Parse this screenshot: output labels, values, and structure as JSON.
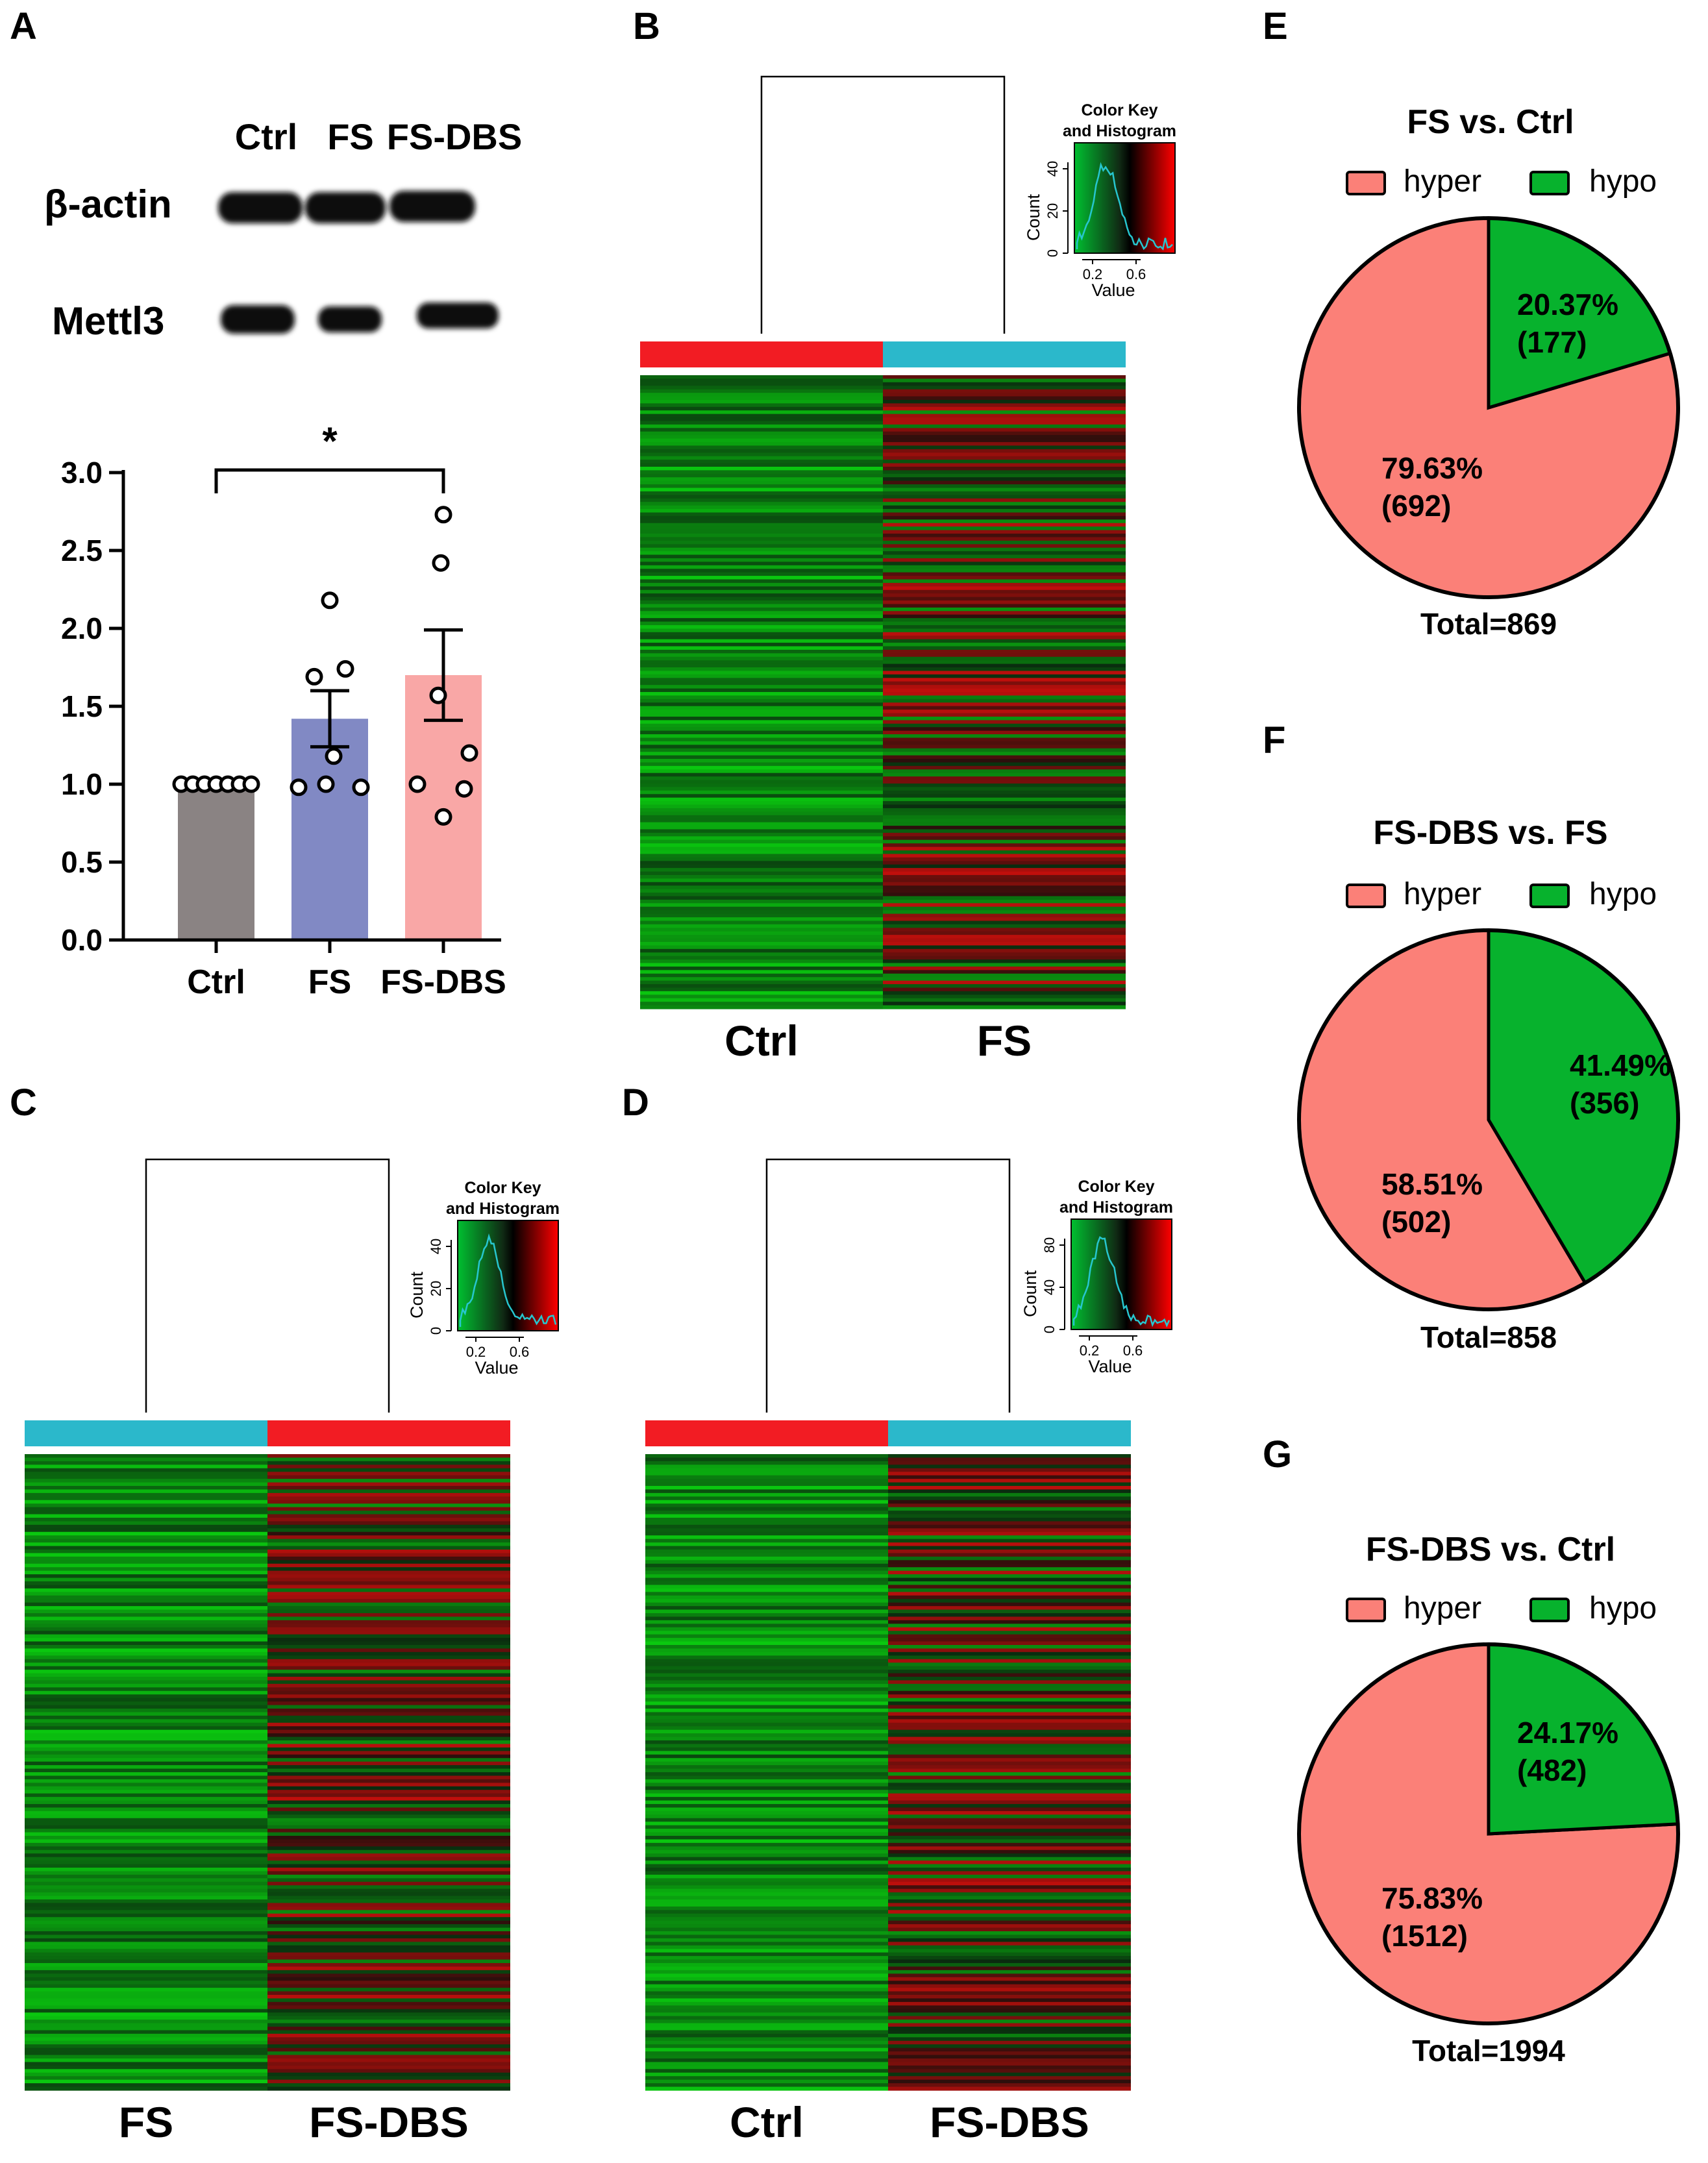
{
  "colors": {
    "ctrl_bar": "#8a8383",
    "fs_bar": "#8189c4",
    "fsdbs_bar": "#f9a7a6",
    "hyper": "#fb8078",
    "hypo": "#07b22d",
    "group_red": "#f21c23",
    "group_cyan": "#2bb8cb"
  },
  "panel_letters": [
    "A",
    "B",
    "C",
    "D",
    "E",
    "F",
    "G"
  ],
  "western_blot": {
    "lane_labels": [
      "Ctrl",
      "FS",
      "FS-DBS"
    ],
    "rows": [
      "β-actin",
      "Mettl3"
    ]
  },
  "chart_data": [
    {
      "panel": "A",
      "type": "bar",
      "categories": [
        "Ctrl",
        "FS",
        "FS-DBS"
      ],
      "values": [
        1.0,
        1.42,
        1.7
      ],
      "sem": [
        0.0,
        0.18,
        0.29
      ],
      "points": [
        [
          1.0,
          1.0,
          1.0,
          1.0,
          1.0,
          1.0,
          1.0
        ],
        [
          0.98,
          1.0,
          1.18,
          1.69,
          1.74,
          2.18,
          0.98
        ],
        [
          0.79,
          1.0,
          1.2,
          1.57,
          2.42,
          2.73,
          0.97
        ]
      ],
      "ylim": [
        0,
        3.0
      ],
      "yticks": [
        "0.0",
        "0.5",
        "1.0",
        "1.5",
        "2.0",
        "2.5",
        "3.0"
      ],
      "significance": {
        "between": [
          "Ctrl",
          "FS-DBS"
        ],
        "label": "*"
      }
    },
    {
      "panel": "B",
      "type": "heatmap",
      "columns": [
        "Ctrl",
        "FS"
      ],
      "color_key": {
        "title_line1": "Color Key",
        "title_line2": "and Histogram",
        "ylabel": "Count",
        "xlabel": "Value",
        "xticks": [
          "0.2",
          "0.6"
        ],
        "yticks": [
          "0",
          "20",
          "40"
        ]
      }
    },
    {
      "panel": "C",
      "type": "heatmap",
      "columns": [
        "FS",
        "FS-DBS"
      ],
      "color_key": {
        "title_line1": "Color Key",
        "title_line2": "and Histogram",
        "ylabel": "Count",
        "xlabel": "Value",
        "xticks": [
          "0.2",
          "0.6"
        ],
        "yticks": [
          "0",
          "20",
          "40"
        ]
      }
    },
    {
      "panel": "D",
      "type": "heatmap",
      "columns": [
        "Ctrl",
        "FS-DBS"
      ],
      "color_key": {
        "title_line1": "Color Key",
        "title_line2": "and Histogram",
        "ylabel": "Count",
        "xlabel": "Value",
        "xticks": [
          "0.2",
          "0.6"
        ],
        "yticks": [
          "0",
          "40",
          "80"
        ]
      }
    },
    {
      "panel": "E",
      "type": "pie",
      "title": "FS vs. Ctrl",
      "legend": [
        "hyper",
        "hypo"
      ],
      "slices": [
        {
          "name": "hypo",
          "percent": 20.37,
          "count": 177,
          "label": "20.37%",
          "count_label": "(177)"
        },
        {
          "name": "hyper",
          "percent": 79.63,
          "count": 692,
          "label": "79.63%",
          "count_label": "(692)"
        }
      ],
      "total_label": "Total=869"
    },
    {
      "panel": "F",
      "type": "pie",
      "title": "FS-DBS vs. FS",
      "legend": [
        "hyper",
        "hypo"
      ],
      "slices": [
        {
          "name": "hypo",
          "percent": 41.49,
          "count": 356,
          "label": "41.49%",
          "count_label": "(356)"
        },
        {
          "name": "hyper",
          "percent": 58.51,
          "count": 502,
          "label": "58.51%",
          "count_label": "(502)"
        }
      ],
      "total_label": "Total=858"
    },
    {
      "panel": "G",
      "type": "pie",
      "title": "FS-DBS vs. Ctrl",
      "legend": [
        "hyper",
        "hypo"
      ],
      "slices": [
        {
          "name": "hypo",
          "percent": 24.17,
          "count": 482,
          "label": "24.17%",
          "count_label": "(482)"
        },
        {
          "name": "hyper",
          "percent": 75.83,
          "count": 1512,
          "label": "75.83%",
          "count_label": "(1512)"
        }
      ],
      "total_label": "Total=1994"
    }
  ]
}
